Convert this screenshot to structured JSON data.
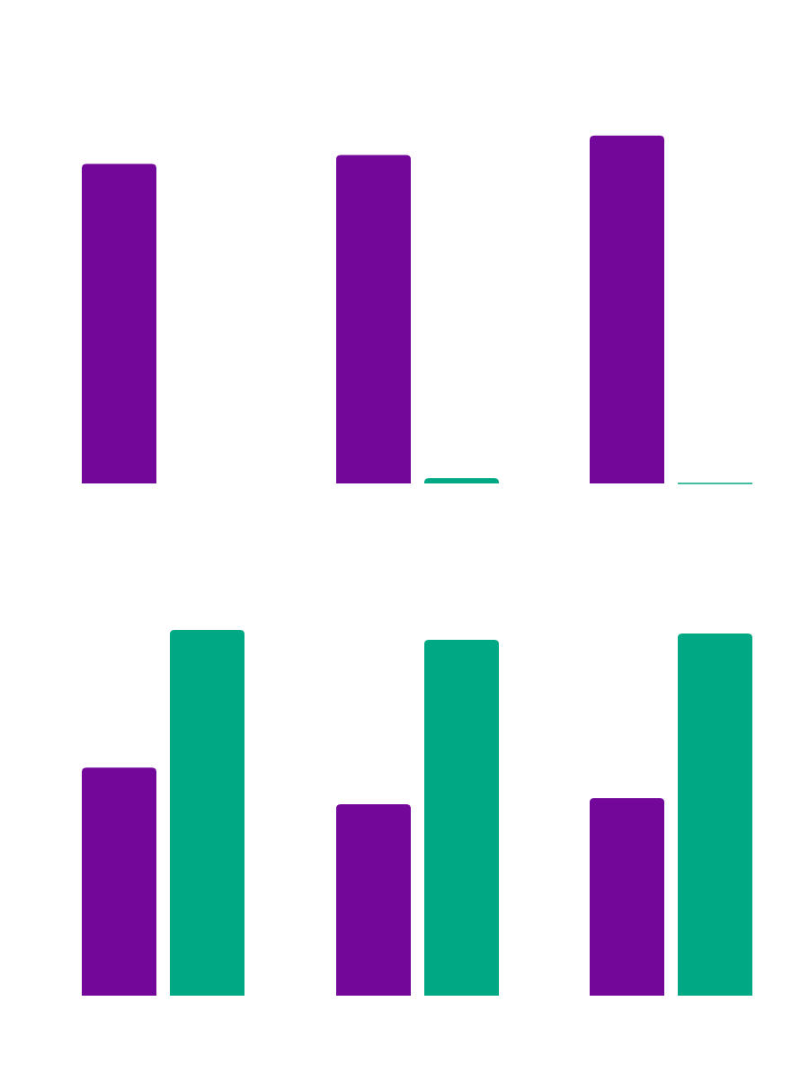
{
  "colors": {
    "series_a": "#72079a",
    "series_b": "#00a884",
    "background": "#ffffff"
  },
  "chart_data": [
    {
      "type": "bar",
      "title": "",
      "xlabel": "",
      "ylabel": "",
      "categories": [
        "",
        "",
        ""
      ],
      "series": [
        {
          "name": "",
          "color": "#72079a",
          "values": [
            362,
            372,
            394
          ]
        },
        {
          "name": "",
          "color": "#00a884",
          "values": [
            0,
            6,
            1
          ]
        }
      ],
      "ylim": [
        0,
        400
      ],
      "grid": false,
      "legend": "none"
    },
    {
      "type": "bar",
      "title": "",
      "xlabel": "",
      "ylabel": "",
      "categories": [
        "",
        "",
        ""
      ],
      "series": [
        {
          "name": "",
          "color": "#72079a",
          "values": [
            255,
            214,
            221
          ]
        },
        {
          "name": "",
          "color": "#00a884",
          "values": [
            409,
            398,
            405
          ]
        }
      ],
      "ylim": [
        0,
        410
      ],
      "grid": false,
      "legend": "none"
    }
  ]
}
